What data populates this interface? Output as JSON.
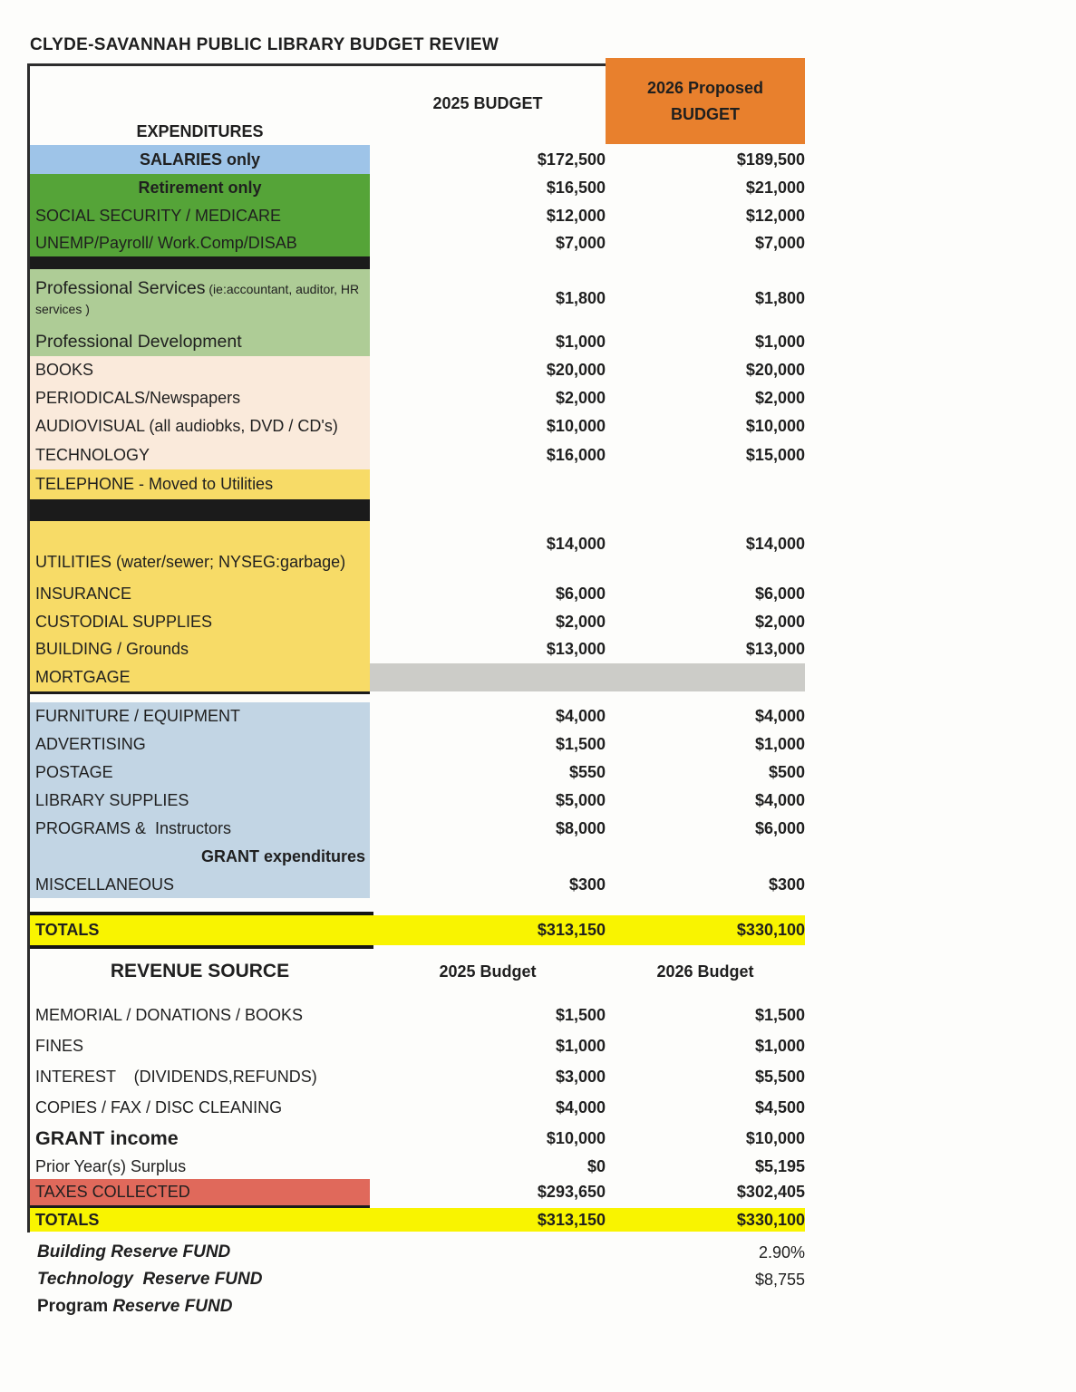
{
  "title": "CLYDE-SAVANNAH PUBLIC LIBRARY BUDGET REVIEW",
  "colors": {
    "orange": "#E8802D",
    "blue": "#9EC4E8",
    "green": "#55A438",
    "lightgreen": "#AECC96",
    "cream": "#FAEADB",
    "yellow": "#F7DB67",
    "gray": "#CCCCC8",
    "lightblue": "#C2D5E4",
    "totals_yellow": "#F9F400",
    "red": "#E0695B"
  },
  "expenditures": {
    "section_label": "EXPENDITURES",
    "col_2025": "2025 BUDGET",
    "proposed_line1": "2026 Proposed",
    "proposed_line2": "BUDGET",
    "rows": [
      {
        "label": "SALARIES only",
        "v2025": "$172,500",
        "v2026": "$189,500",
        "bg": "blue",
        "style": "bold-center"
      },
      {
        "label": "Retirement only",
        "v2025": "$16,500",
        "v2026": "$21,000",
        "bg": "green",
        "style": "bold-center"
      },
      {
        "label": "SOCIAL SECURITY / MEDICARE",
        "v2025": "$12,000",
        "v2026": "$12,000",
        "bg": "green"
      },
      {
        "label": "UNEMP/Payroll/ Work.Comp/DISAB",
        "v2025": "$7,000",
        "v2026": "$7,000",
        "bg": "green"
      },
      {
        "label": "Professional Services",
        "sub": "(ie:accountant, auditor, HR services )",
        "v2025": "$1,800",
        "v2026": "$1,800",
        "bg": "lightgreen",
        "style": "large"
      },
      {
        "label": "Professional Development",
        "v2025": "$1,000",
        "v2026": "$1,000",
        "bg": "lightgreen",
        "style": "large"
      },
      {
        "label": "BOOKS",
        "v2025": "$20,000",
        "v2026": "$20,000",
        "bg": "cream"
      },
      {
        "label": "PERIODICALS/Newspapers",
        "v2025": "$2,000",
        "v2026": "$2,000",
        "bg": "cream"
      },
      {
        "label": "AUDIOVISUAL (all audiobks, DVD / CD's)",
        "v2025": "$10,000",
        "v2026": "$10,000",
        "bg": "cream"
      },
      {
        "label": "TECHNOLOGY",
        "v2025": "$16,000",
        "v2026": "$15,000",
        "bg": "cream"
      },
      {
        "label": "TELEPHONE - Moved to Utilities",
        "v2025": "",
        "v2026": "",
        "bg": "yellow"
      },
      {
        "label": "UTILITIES (water/sewer; NYSEG:garbage)",
        "v2025": "$14,000",
        "v2026": "$14,000",
        "bg": "yellow"
      },
      {
        "label": "INSURANCE",
        "v2025": "$6,000",
        "v2026": "$6,000",
        "bg": "yellow"
      },
      {
        "label": "CUSTODIAL SUPPLIES",
        "v2025": "$2,000",
        "v2026": "$2,000",
        "bg": "yellow"
      },
      {
        "label": "BUILDING / Grounds",
        "v2025": "$13,000",
        "v2026": "$13,000",
        "bg": "yellow"
      },
      {
        "label": "MORTGAGE",
        "v2025": "",
        "v2026": "",
        "bg": "yellow",
        "values_band": "gray"
      },
      {
        "label": "FURNITURE / EQUIPMENT",
        "v2025": "$4,000",
        "v2026": "$4,000",
        "bg": "lightblue"
      },
      {
        "label": "ADVERTISING",
        "v2025": "$1,500",
        "v2026": "$1,000",
        "bg": "lightblue"
      },
      {
        "label": "POSTAGE",
        "v2025": "$550",
        "v2026": "$500",
        "bg": "lightblue"
      },
      {
        "label": "LIBRARY SUPPLIES",
        "v2025": "$5,000",
        "v2026": "$4,000",
        "bg": "lightblue"
      },
      {
        "label": "PROGRAMS &  Instructors",
        "v2025": "$8,000",
        "v2026": "$6,000",
        "bg": "lightblue"
      },
      {
        "label": "GRANT expenditures",
        "v2025": "",
        "v2026": "",
        "bg": "lightblue",
        "style": "bold-right"
      },
      {
        "label": "MISCELLANEOUS",
        "v2025": "$300",
        "v2026": "$300",
        "bg": "lightblue"
      }
    ],
    "totals": {
      "label": "TOTALS",
      "v2025": "$313,150",
      "v2026": "$330,100"
    }
  },
  "revenue": {
    "section_label": "REVENUE SOURCE",
    "col_2025": "2025 Budget",
    "col_2026": "2026 Budget",
    "rows": [
      {
        "label": "MEMORIAL / DONATIONS / BOOKS",
        "v2025": "$1,500",
        "v2026": "$1,500"
      },
      {
        "label": "FINES",
        "v2025": "$1,000",
        "v2026": "$1,000"
      },
      {
        "label": "INTEREST    (DIVIDENDS,REFUNDS)",
        "v2025": "$3,000",
        "v2026": "$5,500"
      },
      {
        "label": "COPIES / FAX / DISC CLEANING",
        "v2025": "$4,000",
        "v2026": "$4,500"
      },
      {
        "label": "GRANT income",
        "v2025": "$10,000",
        "v2026": "$10,000",
        "style": "bold-large"
      },
      {
        "label": "Prior Year(s) Surplus",
        "v2025": "$0",
        "v2026": "$5,195"
      },
      {
        "label": "TAXES COLLECTED",
        "v2025": "$293,650",
        "v2026": "$302,405",
        "bg": "red"
      }
    ],
    "totals": {
      "label": "TOTALS",
      "v2025": "$313,150",
      "v2026": "$330,100"
    }
  },
  "footer": [
    {
      "upright": "",
      "italic": "Building Reserve FUND",
      "value": "2.90%"
    },
    {
      "upright": "",
      "italic": "Technology  Reserve FUND",
      "value": "$8,755"
    },
    {
      "upright": "Program ",
      "italic": "Reserve FUND",
      "value": ""
    }
  ]
}
